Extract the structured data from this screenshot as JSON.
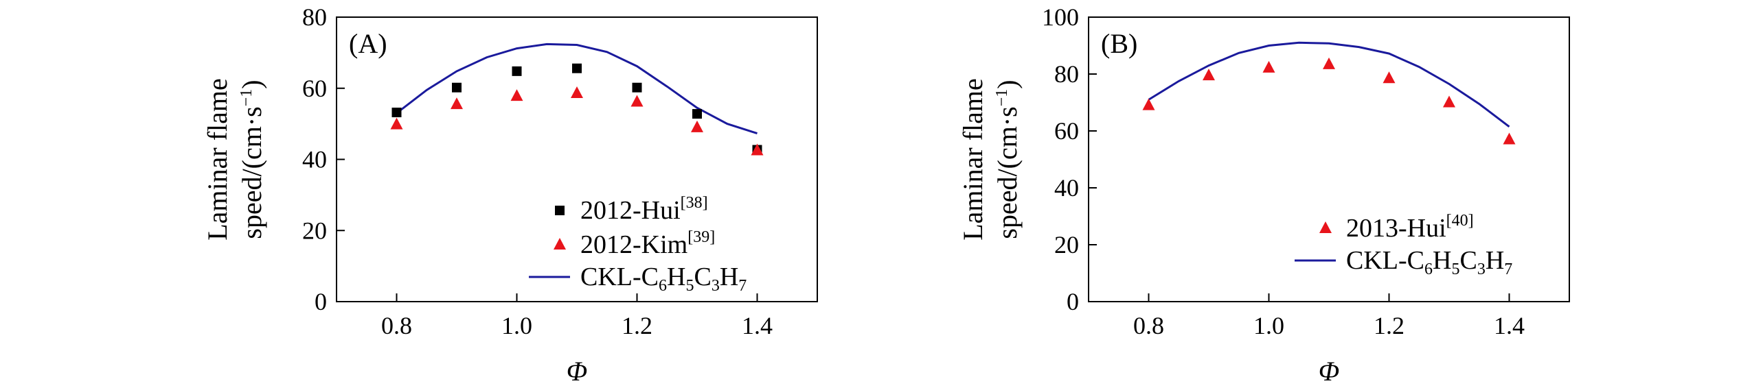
{
  "chart_data": [
    {
      "type": "line+scatter",
      "panel_label": "(A)",
      "xlabel": "Φ",
      "ylabel_line1": "Laminar flame",
      "ylabel_line2": "speed/(cm·s",
      "ylabel_sup": "−1",
      "ylabel_end": ")",
      "xlim": [
        0.7,
        1.5
      ],
      "ylim": [
        0,
        80
      ],
      "xticks": [
        "0.8",
        "1.0",
        "1.2",
        "1.4"
      ],
      "xtick_values": [
        0.8,
        1.0,
        1.2,
        1.4
      ],
      "yticks": [
        "0",
        "20",
        "40",
        "60",
        "80"
      ],
      "ytick_values": [
        0,
        20,
        40,
        60,
        80
      ],
      "legend_position": "lower-right",
      "series": [
        {
          "name": "2012-Hui",
          "name_sup": "[38]",
          "marker": "square",
          "color": "#000000",
          "x": [
            0.8,
            0.9,
            1.0,
            1.1,
            1.2,
            1.3,
            1.4
          ],
          "y": [
            53.2,
            60.2,
            64.8,
            65.6,
            60.2,
            52.8,
            42.7
          ]
        },
        {
          "name": "2012-Kim",
          "name_sup": "[39]",
          "marker": "triangle",
          "color": "#e8141b",
          "x": [
            0.8,
            0.9,
            1.0,
            1.1,
            1.2,
            1.3,
            1.4
          ],
          "y": [
            49.8,
            55.5,
            57.8,
            58.6,
            56.2,
            49.0,
            42.5
          ]
        },
        {
          "name_prefix": "CKL-C",
          "name_parts": [
            "6",
            "H",
            "5",
            "C",
            "3",
            "H",
            "7"
          ],
          "marker": "line",
          "color": "#1a1a9c",
          "x": [
            0.8,
            0.85,
            0.9,
            0.95,
            1.0,
            1.05,
            1.1,
            1.15,
            1.2,
            1.25,
            1.3,
            1.35,
            1.4
          ],
          "y": [
            53.0,
            59.5,
            64.8,
            68.7,
            71.2,
            72.4,
            72.2,
            70.2,
            66.2,
            60.5,
            54.5,
            50.0,
            47.3
          ]
        }
      ]
    },
    {
      "type": "line+scatter",
      "panel_label": "(B)",
      "xlabel": "Φ",
      "ylabel_line1": "Laminar flame",
      "ylabel_line2": "speed/(cm·s",
      "ylabel_sup": "−1",
      "ylabel_end": ")",
      "xlim": [
        0.7,
        1.5
      ],
      "ylim": [
        0,
        100
      ],
      "xticks": [
        "0.8",
        "1.0",
        "1.2",
        "1.4"
      ],
      "xtick_values": [
        0.8,
        1.0,
        1.2,
        1.4
      ],
      "yticks": [
        "0",
        "20",
        "40",
        "60",
        "80",
        "100"
      ],
      "ytick_values": [
        0,
        20,
        40,
        60,
        80,
        100
      ],
      "legend_position": "lower-right",
      "series": [
        {
          "name": "2013-Hui",
          "name_sup": "[40]",
          "marker": "triangle",
          "color": "#e8141b",
          "x": [
            0.8,
            0.9,
            1.0,
            1.1,
            1.2,
            1.3,
            1.4
          ],
          "y": [
            69.0,
            79.5,
            82.2,
            83.4,
            78.5,
            70.0,
            57.0
          ]
        },
        {
          "name_prefix": "CKL-C",
          "name_parts": [
            "6",
            "H",
            "5",
            "C",
            "3",
            "H",
            "7"
          ],
          "marker": "line",
          "color": "#1a1a9c",
          "x": [
            0.8,
            0.85,
            0.9,
            0.95,
            1.0,
            1.05,
            1.1,
            1.15,
            1.2,
            1.25,
            1.3,
            1.35,
            1.4
          ],
          "y": [
            71.0,
            77.5,
            83.0,
            87.4,
            90.0,
            91.0,
            90.8,
            89.5,
            87.2,
            82.5,
            76.5,
            69.5,
            61.5
          ]
        }
      ]
    }
  ]
}
